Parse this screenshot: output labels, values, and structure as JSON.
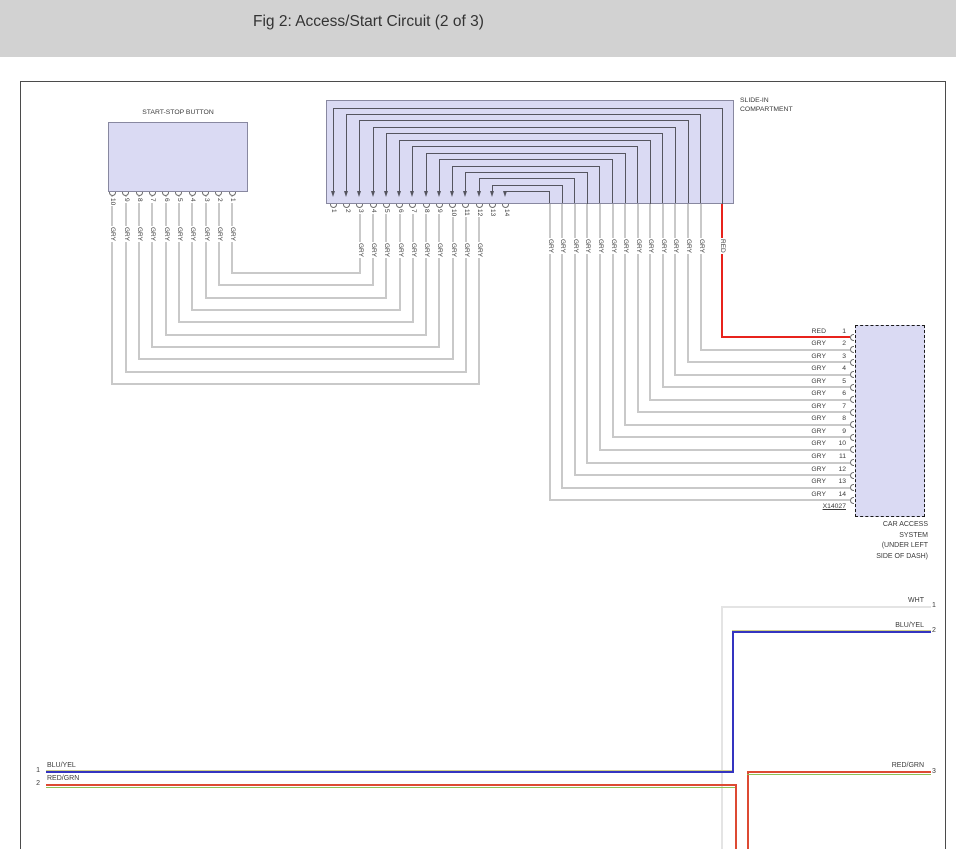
{
  "header": {
    "title": "Fig 2: Access/Start Circuit (2 of 3)"
  },
  "start_stop_button": {
    "label": "START-STOP BUTTON",
    "pins": [
      {
        "num": "10",
        "wire": "GRY"
      },
      {
        "num": "9",
        "wire": "GRY"
      },
      {
        "num": "8",
        "wire": "GRY"
      },
      {
        "num": "7",
        "wire": "GRY"
      },
      {
        "num": "6",
        "wire": "GRY"
      },
      {
        "num": "5",
        "wire": "GRY"
      },
      {
        "num": "4",
        "wire": "GRY"
      },
      {
        "num": "3",
        "wire": "GRY"
      },
      {
        "num": "2",
        "wire": "GRY"
      },
      {
        "num": "1",
        "wire": "GRY"
      }
    ]
  },
  "slide_in_compartment": {
    "label_line1": "SLIDE-IN",
    "label_line2": "COMPARTMENT",
    "top_pins": [
      "1",
      "2",
      "3",
      "4",
      "5",
      "6",
      "7",
      "8",
      "9",
      "10",
      "11",
      "12",
      "13",
      "14"
    ],
    "bottom_wires_left": [
      "GRY",
      "GRY",
      "GRY",
      "GRY",
      "GRY",
      "GRY",
      "GRY",
      "GRY",
      "GRY",
      "GRY"
    ],
    "bottom_wires_right": [
      "GRY",
      "GRY",
      "GRY",
      "GRY",
      "GRY",
      "GRY",
      "GRY",
      "GRY",
      "GRY",
      "GRY",
      "GRY",
      "GRY",
      "GRY",
      "RED"
    ]
  },
  "car_access_system": {
    "pins": [
      {
        "wire": "RED",
        "num": "1"
      },
      {
        "wire": "GRY",
        "num": "2"
      },
      {
        "wire": "GRY",
        "num": "3"
      },
      {
        "wire": "GRY",
        "num": "4"
      },
      {
        "wire": "GRY",
        "num": "5"
      },
      {
        "wire": "GRY",
        "num": "6"
      },
      {
        "wire": "GRY",
        "num": "7"
      },
      {
        "wire": "GRY",
        "num": "8"
      },
      {
        "wire": "GRY",
        "num": "9"
      },
      {
        "wire": "GRY",
        "num": "10"
      },
      {
        "wire": "GRY",
        "num": "11"
      },
      {
        "wire": "GRY",
        "num": "12"
      },
      {
        "wire": "GRY",
        "num": "13"
      },
      {
        "wire": "GRY",
        "num": "14"
      }
    ],
    "connector_id": "X14027",
    "caption_lines": [
      "CAR ACCESS",
      "SYSTEM",
      "(UNDER LEFT",
      "SIDE OF DASH)"
    ]
  },
  "bottom_circuit": {
    "left_pins": [
      {
        "num": "1",
        "label": "BLU/YEL"
      },
      {
        "num": "2",
        "label": "RED/GRN"
      }
    ],
    "right_pins": [
      {
        "num": "1",
        "label": "WHT"
      },
      {
        "num": "2",
        "label": "BLU/YEL"
      },
      {
        "num": "3",
        "label": "RED/GRN"
      }
    ]
  },
  "colors": {
    "header_bg": "#d2d2d2",
    "block_fill": "#dadaf3",
    "gry_wire": "#c9c9c9",
    "red_wire": "#e8231c",
    "wht_wire": "#e4e4e4",
    "blu_wire": "#3434c0",
    "yel_stripe": "#cfcf8a",
    "redgrn_wire": "#dd4a33",
    "grn_stripe": "#8fc055",
    "internal_wire": "#55555f"
  }
}
